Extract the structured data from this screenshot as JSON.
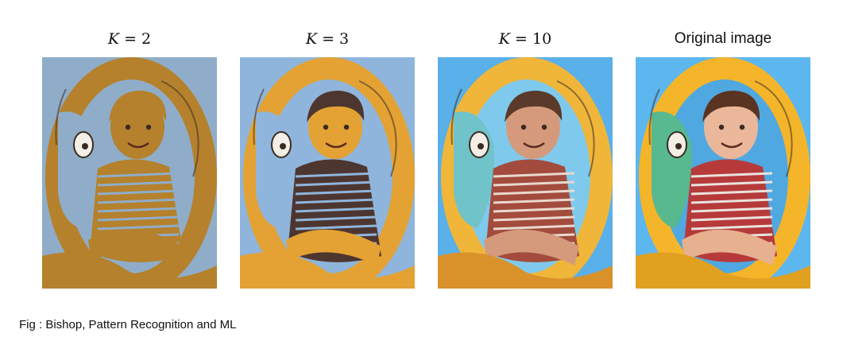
{
  "panels": [
    {
      "k_symbol": "K",
      "k_value": "= 2",
      "colors": {
        "bg": "#8fadc9",
        "ring": "#b5812c",
        "inner": "#8fadc9",
        "face": "#b5812c",
        "hair": "#b5812c",
        "shirt": "#b5812c",
        "stripe": "#8fadc9",
        "arms": "#b5812c",
        "tube": "#b5812c",
        "mascot": "#8fadc9"
      }
    },
    {
      "k_symbol": "K",
      "k_value": "= 3",
      "colors": {
        "bg": "#8fb5dc",
        "ring": "#e3a233",
        "inner": "#8fb5dc",
        "face": "#e3a233",
        "hair": "#4e3630",
        "shirt": "#4e3630",
        "stripe": "#8fb5dc",
        "arms": "#e3a233",
        "tube": "#e3a233",
        "mascot": "#8fb5dc"
      }
    },
    {
      "k_symbol": "K",
      "k_value": "= 10",
      "colors": {
        "bg": "#5ab0e8",
        "ring": "#f0b63a",
        "inner": "#7fc9ec",
        "face": "#d59a7b",
        "hair": "#5a3a2a",
        "shirt": "#a34b3d",
        "stripe": "#e8d9cf",
        "arms": "#d59a7b",
        "tube": "#d9912a",
        "mascot": "#6fc3c9"
      }
    },
    {
      "label": "Original image",
      "colors": {
        "bg": "#5db7ef",
        "ring": "#f5b52a",
        "inner": "#4fa8e0",
        "face": "#eab79a",
        "hair": "#5a3422",
        "shirt": "#b63a3a",
        "stripe": "#e9e3de",
        "arms": "#e7b08f",
        "tube": "#e0a020",
        "mascot": "#58b88e"
      }
    }
  ],
  "caption": "Fig : Bishop, Pattern Recognition and ML"
}
